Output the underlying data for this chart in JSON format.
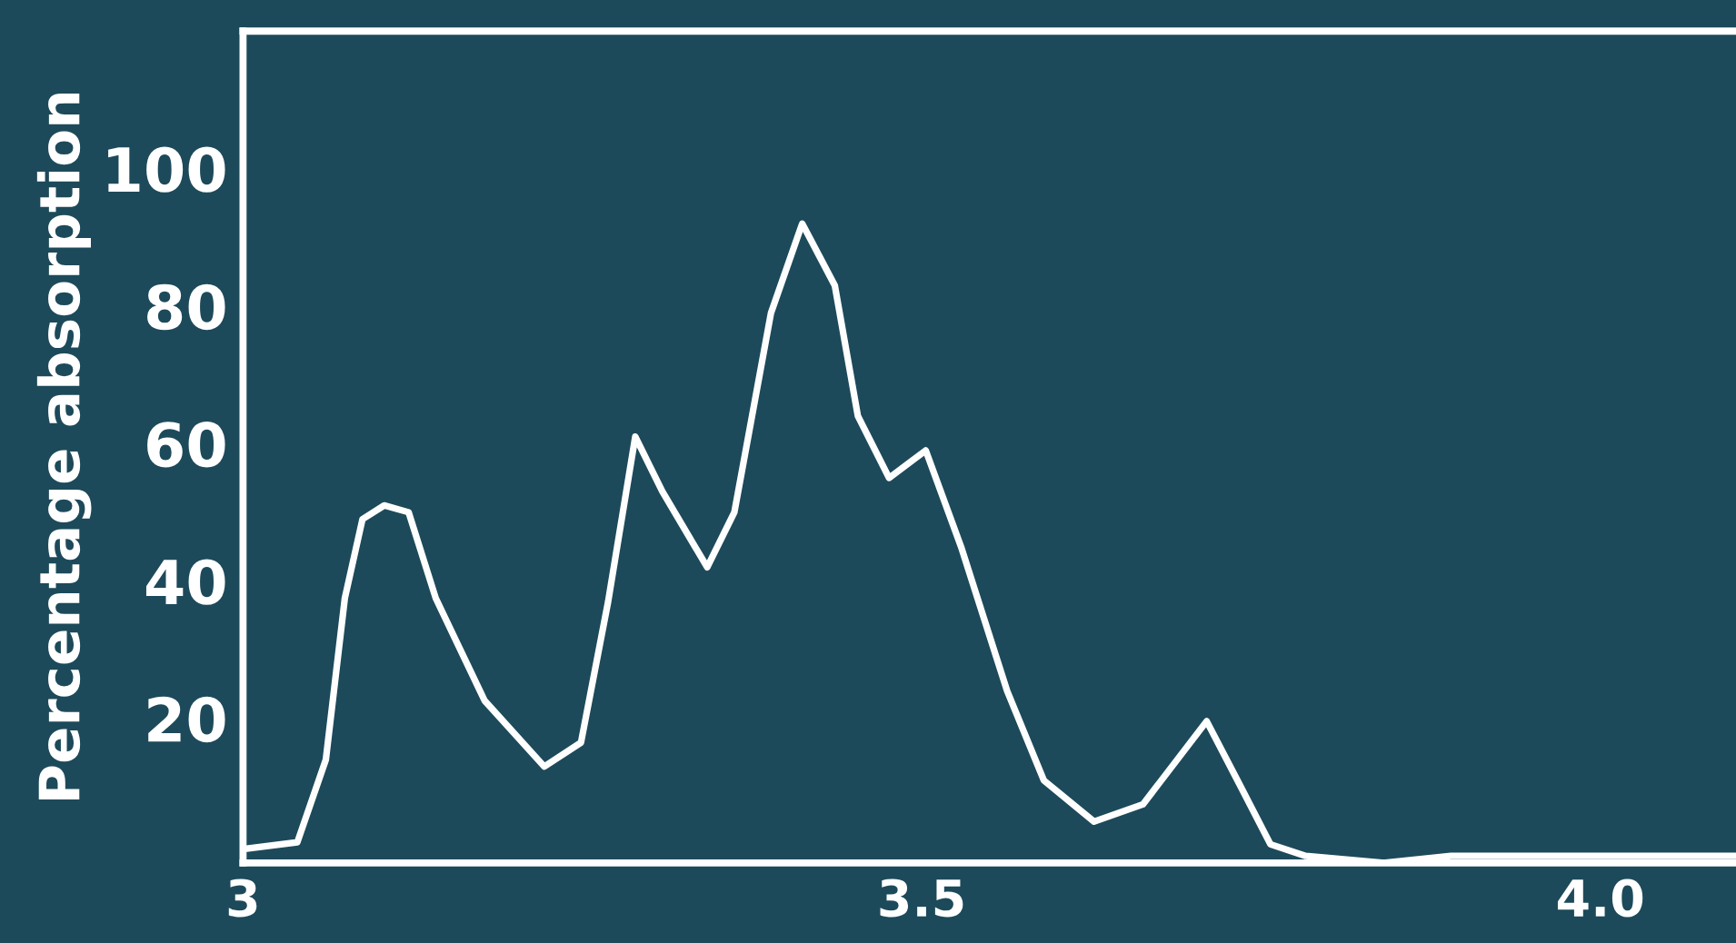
{
  "chart_data": {
    "type": "line",
    "ylabel": "Percentage absorption",
    "x": [
      3.0,
      3.04,
      3.061,
      3.075,
      3.088,
      3.104,
      3.122,
      3.142,
      3.178,
      3.222,
      3.249,
      3.269,
      3.289,
      3.309,
      3.342,
      3.362,
      3.389,
      3.412,
      3.436,
      3.453,
      3.476,
      3.503,
      3.529,
      3.563,
      3.59,
      3.627,
      3.663,
      3.71,
      3.734,
      3.757,
      3.783,
      3.841,
      3.89,
      3.937,
      4.1
    ],
    "series": [
      {
        "color": "#ffffff",
        "values": [
          1,
          2,
          14,
          37.5,
          49,
          51,
          50,
          37.5,
          22.6,
          13,
          16.5,
          37,
          61,
          53,
          42,
          50,
          79,
          92,
          83,
          64,
          55,
          59,
          45,
          24,
          11,
          5,
          7.5,
          19.6,
          10.5,
          1.7,
          0,
          -1,
          0,
          0,
          0
        ]
      }
    ],
    "xlim": [
      3,
      4.1
    ],
    "ylim": [
      -1,
      120
    ],
    "xticks": [
      3,
      {
        "value": 3.5,
        "label": "3.5"
      },
      {
        "value": 4.0,
        "label": "4.0"
      }
    ],
    "yticks": [
      20,
      40,
      60,
      80,
      100
    ]
  }
}
